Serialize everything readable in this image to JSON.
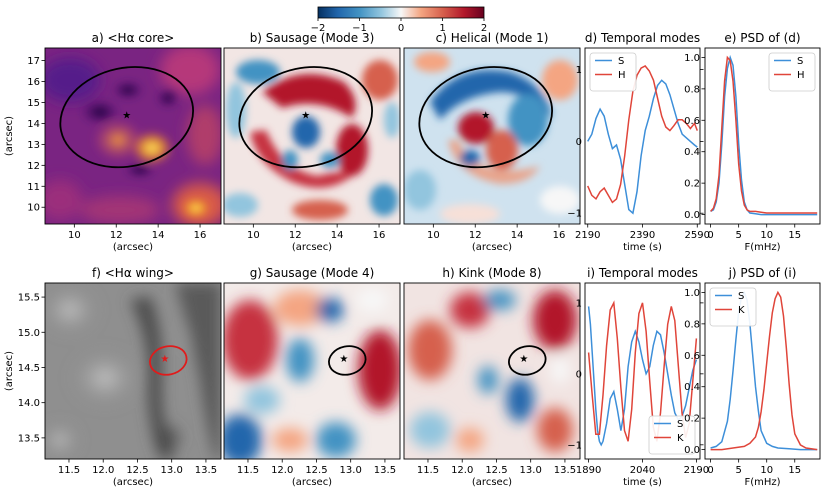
{
  "colorbar": {
    "cmap": "RdBu_r",
    "min": -2,
    "max": 2,
    "ticks": [
      {
        "v": -2,
        "label": "−2"
      },
      {
        "v": -1,
        "label": "−1"
      },
      {
        "v": 0,
        "label": "0"
      },
      {
        "v": 1,
        "label": "1"
      },
      {
        "v": 2,
        "label": "2"
      }
    ]
  },
  "chart_data": [
    {
      "id": "a",
      "type": "heatmap",
      "title": "a) <Hα core>",
      "colormap": "inferno",
      "xlabel": "(arcsec)",
      "ylabel": "(arcsec)",
      "xlim": [
        8.6,
        17.0
      ],
      "ylim": [
        9.2,
        17.6
      ],
      "xticks": [
        {
          "v": 10,
          "label": "10"
        },
        {
          "v": 12,
          "label": "12"
        },
        {
          "v": 14,
          "label": "14"
        },
        {
          "v": 16,
          "label": "16"
        }
      ],
      "yticks": [
        {
          "v": 10,
          "label": "10"
        },
        {
          "v": 11,
          "label": "11"
        },
        {
          "v": 12,
          "label": "12"
        },
        {
          "v": 13,
          "label": "13"
        },
        {
          "v": 14,
          "label": "14"
        },
        {
          "v": 15,
          "label": "15"
        },
        {
          "v": 16,
          "label": "16"
        },
        {
          "v": 17,
          "label": "17"
        }
      ],
      "ellipse": {
        "cx": 12.5,
        "cy": 14.3,
        "rx": 3.2,
        "ry": 2.35,
        "color": "#000000"
      },
      "star": {
        "x": 12.5,
        "y": 14.4,
        "color": "#000000"
      }
    },
    {
      "id": "b",
      "type": "heatmap",
      "title": "b) Sausage (Mode 3)",
      "colormap": "RdBu_r",
      "xlabel": "(arcsec)",
      "xlim": [
        8.6,
        17.0
      ],
      "ylim": [
        9.2,
        17.6
      ],
      "xticks": [
        {
          "v": 10,
          "label": "10"
        },
        {
          "v": 12,
          "label": "12"
        },
        {
          "v": 14,
          "label": "14"
        },
        {
          "v": 16,
          "label": "16"
        }
      ],
      "ellipse": {
        "cx": 12.5,
        "cy": 14.3,
        "rx": 3.2,
        "ry": 2.35,
        "color": "#000000"
      },
      "star": {
        "x": 12.5,
        "y": 14.4,
        "color": "#000000"
      }
    },
    {
      "id": "c",
      "type": "heatmap",
      "title": "c) Helical (Mode 1)",
      "colormap": "RdBu_r",
      "xlabel": "(arcsec)",
      "xlim": [
        8.6,
        17.0
      ],
      "ylim": [
        9.2,
        17.6
      ],
      "xticks": [
        {
          "v": 10,
          "label": "10"
        },
        {
          "v": 12,
          "label": "12"
        },
        {
          "v": 14,
          "label": "14"
        },
        {
          "v": 16,
          "label": "16"
        }
      ],
      "ellipse": {
        "cx": 12.5,
        "cy": 14.3,
        "rx": 3.2,
        "ry": 2.35,
        "color": "#000000"
      },
      "star": {
        "x": 12.5,
        "y": 14.4,
        "color": "#000000"
      }
    },
    {
      "id": "d",
      "type": "line",
      "title": "d) Temporal modes",
      "xlabel": "time (s)",
      "xlim": [
        2180,
        2600
      ],
      "ylim": [
        -1.15,
        1.3
      ],
      "xticks": [
        {
          "v": 2190,
          "label": "2190"
        },
        {
          "v": 2390,
          "label": "2390"
        },
        {
          "v": 2590,
          "label": "2590"
        }
      ],
      "yticks": [
        {
          "v": -1,
          "label": "−1"
        },
        {
          "v": 0,
          "label": "0"
        },
        {
          "v": 1,
          "label": "1"
        }
      ],
      "legend": "top-left",
      "series": [
        {
          "name": "S",
          "color": "#3d8fd9",
          "x": [
            2190,
            2205,
            2220,
            2235,
            2250,
            2265,
            2280,
            2295,
            2310,
            2325,
            2340,
            2355,
            2370,
            2385,
            2400,
            2415,
            2430,
            2445,
            2460,
            2475,
            2490,
            2505,
            2520,
            2535,
            2550,
            2565,
            2580,
            2590
          ],
          "y": [
            0.0,
            0.1,
            0.32,
            0.45,
            0.35,
            0.1,
            -0.1,
            -0.05,
            -0.25,
            -0.6,
            -0.95,
            -1.0,
            -0.7,
            -0.2,
            0.15,
            0.35,
            0.6,
            0.78,
            0.85,
            0.8,
            0.65,
            0.45,
            0.25,
            0.1,
            0.05,
            0.0,
            -0.05,
            -0.08
          ]
        },
        {
          "name": "H",
          "color": "#e0453a",
          "x": [
            2190,
            2205,
            2220,
            2235,
            2250,
            2265,
            2280,
            2295,
            2310,
            2325,
            2340,
            2355,
            2370,
            2385,
            2400,
            2415,
            2430,
            2445,
            2460,
            2475,
            2490,
            2505,
            2520,
            2535,
            2550,
            2565,
            2580,
            2590
          ],
          "y": [
            -0.62,
            -0.75,
            -0.8,
            -0.7,
            -0.65,
            -0.75,
            -0.85,
            -0.8,
            -0.6,
            -0.2,
            0.3,
            0.7,
            0.92,
            1.02,
            1.05,
            0.98,
            0.85,
            0.6,
            0.35,
            0.2,
            0.15,
            0.22,
            0.3,
            0.3,
            0.25,
            0.18,
            0.25,
            0.15
          ]
        }
      ]
    },
    {
      "id": "e",
      "type": "line",
      "title": "e) PSD of (d)",
      "xlabel": "F(mHz)",
      "xlim": [
        -1,
        19.5
      ],
      "ylim": [
        -0.06,
        1.06
      ],
      "xticks": [
        {
          "v": 0,
          "label": "0"
        },
        {
          "v": 5,
          "label": "5"
        },
        {
          "v": 10,
          "label": "10"
        },
        {
          "v": 15,
          "label": "15"
        }
      ],
      "yticks": [
        {
          "v": 0,
          "label": "0.0"
        },
        {
          "v": 0.2,
          "label": "0.2"
        },
        {
          "v": 0.4,
          "label": "0.4"
        },
        {
          "v": 0.6,
          "label": "0.6"
        },
        {
          "v": 0.8,
          "label": "0.8"
        },
        {
          "v": 1.0,
          "label": "1.0"
        }
      ],
      "legend": "top-right",
      "series": [
        {
          "name": "S",
          "color": "#3d8fd9",
          "x": [
            0,
            0.5,
            1,
            1.5,
            2,
            2.5,
            3,
            3.5,
            4,
            4.5,
            5,
            5.5,
            6,
            6.5,
            7,
            8,
            9,
            10,
            12,
            15,
            19
          ],
          "y": [
            0.02,
            0.03,
            0.08,
            0.2,
            0.45,
            0.75,
            0.93,
            1.0,
            0.95,
            0.75,
            0.45,
            0.22,
            0.08,
            0.03,
            0.01,
            0.005,
            0.0,
            0.0,
            0.0,
            0.0,
            0.0
          ]
        },
        {
          "name": "H",
          "color": "#e0453a",
          "x": [
            0,
            0.5,
            1,
            1.5,
            2,
            2.5,
            3,
            3.5,
            4,
            4.5,
            5,
            5.5,
            6,
            6.5,
            7,
            8,
            9,
            10,
            12,
            15,
            19
          ],
          "y": [
            0.02,
            0.04,
            0.1,
            0.25,
            0.55,
            0.85,
            1.0,
            0.98,
            0.85,
            0.6,
            0.32,
            0.15,
            0.06,
            0.03,
            0.02,
            0.02,
            0.015,
            0.01,
            0.01,
            0.01,
            0.01
          ]
        }
      ]
    },
    {
      "id": "f",
      "type": "heatmap",
      "title": "f) <Hα wing>",
      "colormap": "gray",
      "xlabel": "(arcsec)",
      "ylabel": "(arcsec)",
      "xlim": [
        11.15,
        13.72
      ],
      "ylim": [
        13.2,
        15.7
      ],
      "xticks": [
        {
          "v": 11.5,
          "label": "11.5"
        },
        {
          "v": 12.0,
          "label": "12.0"
        },
        {
          "v": 12.5,
          "label": "12.5"
        },
        {
          "v": 13.0,
          "label": "13.0"
        },
        {
          "v": 13.5,
          "label": "13.5"
        }
      ],
      "yticks": [
        {
          "v": 13.5,
          "label": "13.5"
        },
        {
          "v": 14.0,
          "label": "14.0"
        },
        {
          "v": 14.5,
          "label": "14.5"
        },
        {
          "v": 15.0,
          "label": "15.0"
        },
        {
          "v": 15.5,
          "label": "15.5"
        }
      ],
      "ellipse": {
        "cx": 12.95,
        "cy": 14.6,
        "rx": 0.27,
        "ry": 0.2,
        "color": "#e01b1b"
      },
      "star": {
        "x": 12.9,
        "y": 14.63,
        "color": "#e01b1b"
      }
    },
    {
      "id": "g",
      "type": "heatmap",
      "title": "g) Sausage (Mode 4)",
      "colormap": "RdBu_r",
      "xlabel": "(arcsec)",
      "xlim": [
        11.15,
        13.72
      ],
      "ylim": [
        13.2,
        15.7
      ],
      "xticks": [
        {
          "v": 11.5,
          "label": "11.5"
        },
        {
          "v": 12.0,
          "label": "12.0"
        },
        {
          "v": 12.5,
          "label": "12.5"
        },
        {
          "v": 13.0,
          "label": "13.0"
        },
        {
          "v": 13.5,
          "label": "13.5"
        }
      ],
      "ellipse": {
        "cx": 12.95,
        "cy": 14.6,
        "rx": 0.27,
        "ry": 0.2,
        "color": "#000000"
      },
      "star": {
        "x": 12.9,
        "y": 14.63,
        "color": "#000000"
      }
    },
    {
      "id": "h",
      "type": "heatmap",
      "title": "h) Kink (Mode 8)",
      "colormap": "RdBu_r",
      "xlabel": "(arcsec)",
      "xlim": [
        11.15,
        13.72
      ],
      "ylim": [
        13.2,
        15.7
      ],
      "xticks": [
        {
          "v": 11.5,
          "label": "11.5"
        },
        {
          "v": 12.0,
          "label": "12.0"
        },
        {
          "v": 12.5,
          "label": "12.5"
        },
        {
          "v": 13.0,
          "label": "13.0"
        },
        {
          "v": 13.5,
          "label": "13.5"
        }
      ],
      "ellipse": {
        "cx": 12.95,
        "cy": 14.6,
        "rx": 0.27,
        "ry": 0.2,
        "color": "#000000"
      },
      "star": {
        "x": 12.9,
        "y": 14.63,
        "color": "#000000"
      }
    },
    {
      "id": "i",
      "type": "line",
      "title": "i) Temporal modes",
      "xlabel": "time (s)",
      "xlim": [
        1880,
        2200
      ],
      "ylim": [
        -1.2,
        1.28
      ],
      "xticks": [
        {
          "v": 1890,
          "label": "1890"
        },
        {
          "v": 2040,
          "label": "2040"
        },
        {
          "v": 2190,
          "label": "2190"
        }
      ],
      "yticks": [
        {
          "v": -1,
          "label": "−1"
        },
        {
          "v": 0,
          "label": "0"
        },
        {
          "v": 1,
          "label": "1"
        }
      ],
      "legend": "bottom-right",
      "series": [
        {
          "name": "S",
          "color": "#3d8fd9",
          "x": [
            1890,
            1895,
            1900,
            1905,
            1910,
            1915,
            1920,
            1925,
            1930,
            1940,
            1950,
            1960,
            1970,
            1980,
            1990,
            2000,
            2010,
            2020,
            2030,
            2040,
            2050,
            2060,
            2070,
            2080,
            2090,
            2100,
            2110,
            2120,
            2130,
            2140,
            2150,
            2160,
            2170,
            2180,
            2190
          ],
          "y": [
            0.95,
            0.7,
            0.3,
            -0.1,
            -0.5,
            -0.8,
            -0.95,
            -1.0,
            -0.95,
            -0.7,
            -0.35,
            -0.25,
            -0.5,
            -0.8,
            -0.5,
            0.1,
            0.45,
            0.6,
            0.45,
            0.2,
            0.0,
            0.1,
            0.4,
            0.6,
            0.55,
            0.3,
            0.0,
            -0.3,
            -0.55,
            -0.65,
            -0.6,
            -0.45,
            -0.2,
            0.05,
            0.2
          ]
        },
        {
          "name": "K",
          "color": "#e0453a",
          "x": [
            1890,
            1900,
            1910,
            1920,
            1930,
            1940,
            1950,
            1960,
            1970,
            1980,
            1990,
            2000,
            2010,
            2020,
            2030,
            2040,
            2050,
            2060,
            2070,
            2080,
            2090,
            2100,
            2110,
            2120,
            2130,
            2140,
            2150,
            2160,
            2170,
            2180,
            2190
          ],
          "y": [
            0.3,
            -0.3,
            -0.85,
            -0.85,
            -0.3,
            0.4,
            0.9,
            1.0,
            0.5,
            -0.2,
            -0.8,
            -0.95,
            -0.5,
            0.3,
            0.85,
            1.0,
            0.6,
            -0.1,
            -0.75,
            -0.95,
            -0.55,
            0.1,
            0.7,
            0.95,
            0.75,
            0.1,
            -0.55,
            -0.9,
            -0.7,
            -0.1,
            0.5
          ]
        }
      ]
    },
    {
      "id": "j",
      "type": "line",
      "title": "j) PSD of (i)",
      "xlabel": "F(mHz)",
      "xlim": [
        -1,
        19.5
      ],
      "ylim": [
        -0.06,
        1.06
      ],
      "xticks": [
        {
          "v": 0,
          "label": "0"
        },
        {
          "v": 5,
          "label": "5"
        },
        {
          "v": 10,
          "label": "10"
        },
        {
          "v": 15,
          "label": "15"
        }
      ],
      "yticks": [
        {
          "v": 0,
          "label": "0.0"
        },
        {
          "v": 0.2,
          "label": "0.2"
        },
        {
          "v": 0.4,
          "label": "0.4"
        },
        {
          "v": 0.6,
          "label": "0.6"
        },
        {
          "v": 0.8,
          "label": "0.8"
        },
        {
          "v": 1.0,
          "label": "1.0"
        }
      ],
      "legend": "top-left",
      "series": [
        {
          "name": "S",
          "color": "#3d8fd9",
          "x": [
            0,
            1,
            2,
            3,
            3.5,
            4,
            4.5,
            5,
            5.5,
            6,
            6.5,
            7,
            7.5,
            8,
            8.5,
            9,
            10,
            11,
            12,
            14,
            16,
            19
          ],
          "y": [
            0.01,
            0.02,
            0.05,
            0.18,
            0.32,
            0.5,
            0.7,
            0.88,
            0.97,
            1.0,
            0.95,
            0.8,
            0.6,
            0.4,
            0.25,
            0.12,
            0.04,
            0.02,
            0.01,
            0.005,
            0.0,
            0.0
          ]
        },
        {
          "name": "K",
          "color": "#e0453a",
          "x": [
            0,
            2,
            4,
            6,
            7,
            8,
            8.5,
            9,
            9.5,
            10,
            10.5,
            11,
            11.5,
            12,
            12.5,
            13,
            13.5,
            14,
            14.5,
            15,
            16,
            17,
            19
          ],
          "y": [
            0.0,
            0.0,
            0.01,
            0.02,
            0.04,
            0.08,
            0.14,
            0.24,
            0.38,
            0.55,
            0.72,
            0.87,
            0.96,
            1.0,
            0.97,
            0.85,
            0.65,
            0.42,
            0.22,
            0.1,
            0.03,
            0.01,
            0.0
          ]
        }
      ]
    }
  ]
}
